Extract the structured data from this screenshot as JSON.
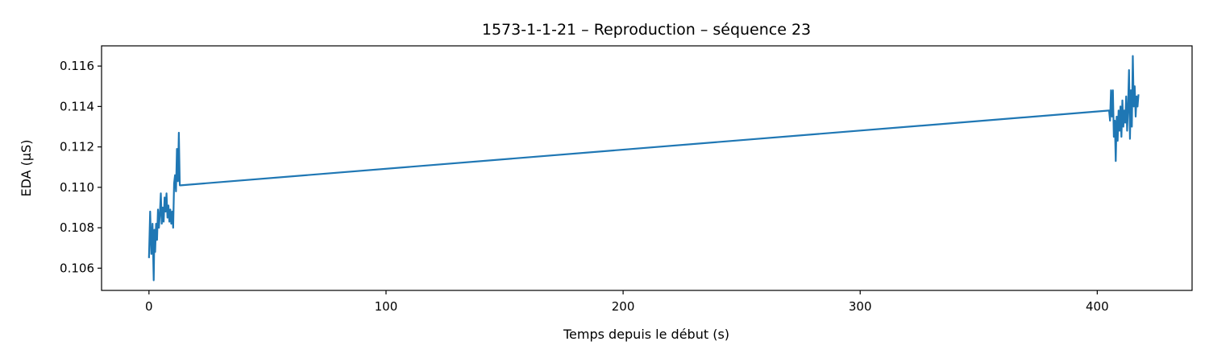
{
  "chart_data": {
    "type": "line",
    "title": "1573-1-1-21 – Reproduction – séquence 23",
    "xlabel": "Temps depuis le début (s)",
    "ylabel": "EDA (µS)",
    "xlim": [
      -20,
      440
    ],
    "ylim": [
      0.1049,
      0.117
    ],
    "x_ticks": [
      0,
      100,
      200,
      300,
      400
    ],
    "y_ticks": [
      0.106,
      0.108,
      0.11,
      0.112,
      0.114,
      0.116
    ],
    "x_tick_labels": [
      "0",
      "100",
      "200",
      "300",
      "400"
    ],
    "y_tick_labels": [
      "0.106",
      "0.108",
      "0.110",
      "0.112",
      "0.114",
      "0.116"
    ],
    "grid": false,
    "legend": "none",
    "series": [
      {
        "color": "#1f77b4",
        "x": [
          0,
          0.5,
          1,
          1.5,
          2,
          2.3,
          2.6,
          3,
          3.4,
          3.8,
          4.2,
          4.6,
          5,
          5.4,
          5.8,
          6.2,
          6.6,
          7,
          7.4,
          7.8,
          8.2,
          8.6,
          9,
          9.4,
          9.8,
          10.2,
          10.6,
          11,
          11.4,
          11.8,
          12.2,
          12.6,
          13,
          13.4,
          405,
          405.4,
          405.8,
          406.2,
          406.6,
          407,
          407.4,
          407.8,
          408.2,
          408.6,
          409,
          409.4,
          409.8,
          410.2,
          410.6,
          411,
          411.4,
          411.8,
          412.2,
          412.6,
          413,
          413.4,
          413.8,
          414.2,
          414.6,
          415,
          415.4,
          415.8,
          416.2,
          416.6,
          417,
          417.4
        ],
        "y": [
          0.1065,
          0.1088,
          0.1067,
          0.1082,
          0.1054,
          0.1079,
          0.1068,
          0.1082,
          0.1074,
          0.1089,
          0.108,
          0.1087,
          0.1097,
          0.1082,
          0.109,
          0.1083,
          0.1095,
          0.1088,
          0.1097,
          0.1085,
          0.1091,
          0.1083,
          0.1089,
          0.1082,
          0.1088,
          0.108,
          0.1102,
          0.1106,
          0.1098,
          0.1119,
          0.1103,
          0.1127,
          0.1101,
          0.1101,
          0.1138,
          0.1133,
          0.1148,
          0.1135,
          0.1148,
          0.1125,
          0.1133,
          0.1113,
          0.1135,
          0.1123,
          0.1138,
          0.1128,
          0.114,
          0.1125,
          0.1143,
          0.113,
          0.1138,
          0.1132,
          0.1145,
          0.1128,
          0.114,
          0.1158,
          0.1124,
          0.1148,
          0.113,
          0.1165,
          0.114,
          0.115,
          0.1135,
          0.1145,
          0.114,
          0.1146
        ]
      }
    ]
  }
}
